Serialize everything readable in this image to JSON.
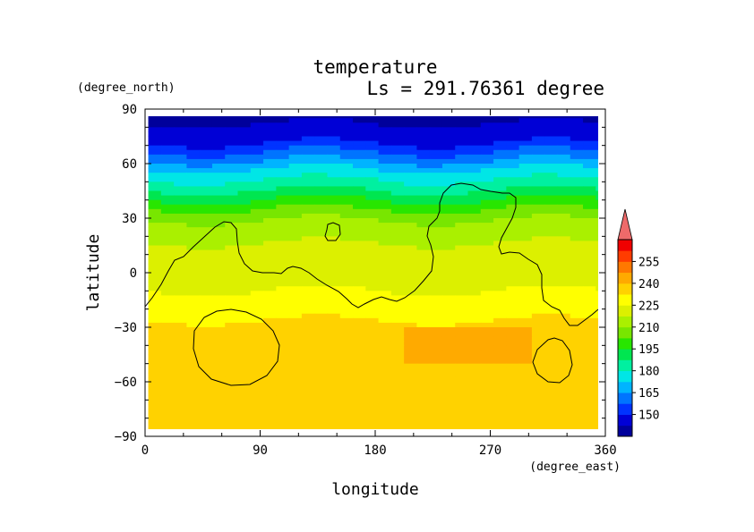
{
  "chart_data": {
    "type": "heatmap",
    "title": "temperature",
    "subtitle": "Ls = 291.76361 degree",
    "xlabel": "longitude",
    "ylabel": "latitude",
    "x_unit": "(degree_east)",
    "y_unit": "(degree_north)",
    "xlim": [
      0,
      360
    ],
    "ylim": [
      -90,
      90
    ],
    "x_ticks": [
      "0",
      "90",
      "180",
      "270",
      "360"
    ],
    "y_ticks": [
      "90",
      "60",
      "30",
      "0",
      "−30",
      "−60",
      "−90"
    ],
    "x_tick_values": [
      0,
      90,
      180,
      270,
      360
    ],
    "y_tick_values": [
      90,
      60,
      30,
      0,
      -30,
      -60,
      -90
    ],
    "colorbar_levels": [
      150,
      165,
      180,
      195,
      210,
      225,
      240,
      255
    ],
    "colorbar_labels": [
      "255",
      "240",
      "225",
      "210",
      "195",
      "180",
      "165",
      "150"
    ],
    "data_extent_lat": [
      -87.5,
      87.5
    ],
    "data_extent_lon": [
      2.5,
      357.5
    ],
    "temperature_by_latitude": {
      "lat": [
        87.5,
        80,
        72,
        66,
        60,
        55,
        50,
        45,
        40,
        35,
        30,
        25,
        20,
        15,
        10,
        5,
        0,
        -5,
        -10,
        -15,
        -20,
        -25,
        -30,
        -40,
        -50,
        -60,
        -70,
        -80,
        -87.5
      ],
      "temp": [
        145,
        147,
        152,
        160,
        168,
        175,
        180,
        186,
        192,
        198,
        204,
        208,
        210,
        212,
        213,
        214,
        215,
        216,
        218,
        220,
        222,
        224,
        226,
        228,
        230,
        229,
        228,
        227,
        226
      ]
    },
    "warm_region": {
      "lon_range": [
        200,
        300
      ],
      "lat_range": [
        -50,
        -30
      ],
      "temp": 235
    }
  },
  "colors": {
    "levels": [
      "#00009b",
      "#0000d6",
      "#0033ff",
      "#0074ff",
      "#00b4ff",
      "#00e6e6",
      "#00f0a0",
      "#00e650",
      "#28e600",
      "#78e600",
      "#aaf000",
      "#dcf000",
      "#ffff00",
      "#ffd200",
      "#ffaa00",
      "#ff7800",
      "#ff3c00",
      "#f00000"
    ],
    "overflow": "#ee6a6a",
    "contour": "#000000"
  }
}
